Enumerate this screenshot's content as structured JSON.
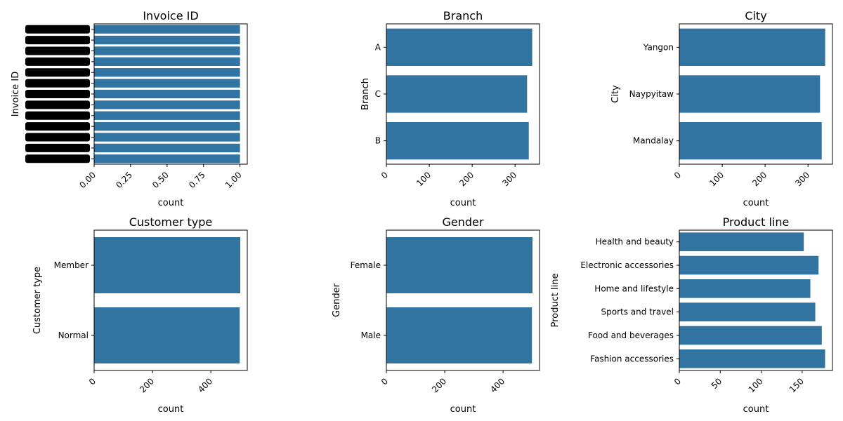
{
  "bar_color": "#3274a1",
  "chart_data": [
    {
      "type": "bar",
      "orientation": "horizontal",
      "title": "Invoice ID",
      "ylabel": "Invoice ID",
      "xlabel": "count",
      "xlim": [
        0,
        1.05
      ],
      "xticks": [
        0,
        0.25,
        0.5,
        0.75,
        1.0
      ],
      "xtick_labels": [
        "0.00",
        "0.25",
        "0.50",
        "0.75",
        "1.00"
      ],
      "categories": [
        "",
        "",
        "",
        "",
        "",
        "",
        "",
        "",
        "",
        "",
        "",
        "",
        ""
      ],
      "values": [
        1,
        1,
        1,
        1,
        1,
        1,
        1,
        1,
        1,
        1,
        1,
        1,
        1
      ],
      "category_labels_illegible": true
    },
    {
      "type": "bar",
      "orientation": "horizontal",
      "title": "Branch",
      "ylabel": "Branch",
      "xlabel": "count",
      "xlim": [
        0,
        357
      ],
      "xticks": [
        0,
        100,
        200,
        300
      ],
      "xtick_labels": [
        "0",
        "100",
        "200",
        "300"
      ],
      "categories": [
        "A",
        "C",
        "B"
      ],
      "values": [
        340,
        328,
        332
      ]
    },
    {
      "type": "bar",
      "orientation": "horizontal",
      "title": "City",
      "ylabel": "City",
      "xlabel": "count",
      "xlim": [
        0,
        357
      ],
      "xticks": [
        0,
        100,
        200,
        300
      ],
      "xtick_labels": [
        "0",
        "100",
        "200",
        "300"
      ],
      "categories": [
        "Yangon",
        "Naypyitaw",
        "Mandalay"
      ],
      "values": [
        340,
        328,
        332
      ]
    },
    {
      "type": "bar",
      "orientation": "horizontal",
      "title": "Customer type",
      "ylabel": "Customer type",
      "xlabel": "count",
      "xlim": [
        0,
        525
      ],
      "xticks": [
        0,
        200,
        400
      ],
      "xtick_labels": [
        "0",
        "200",
        "400"
      ],
      "categories": [
        "Member",
        "Normal"
      ],
      "values": [
        501,
        499
      ]
    },
    {
      "type": "bar",
      "orientation": "horizontal",
      "title": "Gender",
      "ylabel": "Gender",
      "xlabel": "count",
      "xlim": [
        0,
        525
      ],
      "xticks": [
        0,
        200,
        400
      ],
      "xtick_labels": [
        "0",
        "200",
        "400"
      ],
      "categories": [
        "Female",
        "Male"
      ],
      "values": [
        501,
        499
      ]
    },
    {
      "type": "bar",
      "orientation": "horizontal",
      "title": "Product line",
      "ylabel": "Product line",
      "xlabel": "count",
      "xlim": [
        0,
        187
      ],
      "xticks": [
        0,
        50,
        100,
        150
      ],
      "xtick_labels": [
        "0",
        "50",
        "100",
        "150"
      ],
      "categories": [
        "Health and beauty",
        "Electronic accessories",
        "Home and lifestyle",
        "Sports and travel",
        "Food and beverages",
        "Fashion accessories"
      ],
      "values": [
        152,
        170,
        160,
        166,
        174,
        178
      ]
    }
  ]
}
